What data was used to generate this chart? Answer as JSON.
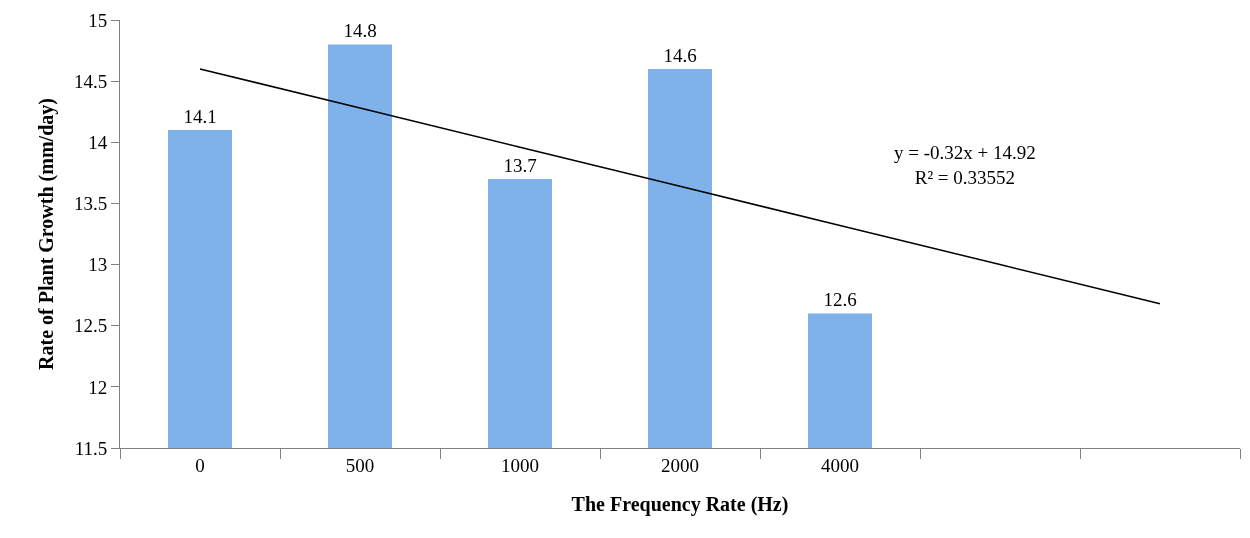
{
  "chart_data": {
    "type": "bar",
    "xlabel": "The Frequency Rate (Hz)",
    "ylabel": "Rate of Plant Growth (mm/day)",
    "categories": [
      "0",
      "500",
      "1000",
      "2000",
      "4000",
      null,
      null
    ],
    "series": [
      {
        "color": "#7fb2ea",
        "values": [
          14.1,
          14.8,
          13.7,
          14.6,
          12.6,
          null,
          null
        ],
        "value_labels": [
          "14.1",
          "14.8",
          "13.7",
          "14.6",
          "12.6",
          null,
          null
        ]
      },
      {
        "type": "line",
        "color": "#000000",
        "values": [
          14.6,
          14.28,
          13.96,
          13.64,
          13.32,
          13.0,
          12.68
        ]
      }
    ],
    "annotations": [
      "y = -0.32x + 14.92\nR² = 0.33552"
    ],
    "ylim": [
      11.5,
      15
    ],
    "yticks": [
      11.5,
      12,
      12.5,
      13,
      13.5,
      14,
      14.5,
      15
    ],
    "grid": false
  }
}
